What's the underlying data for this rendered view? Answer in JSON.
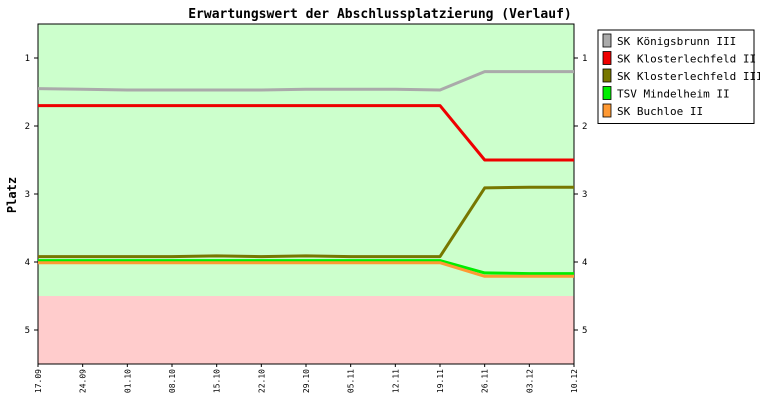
{
  "chart_data": {
    "type": "line",
    "title": "Erwartungswert der Abschlussplatzierung (Verlauf)",
    "ylabel": "Platz",
    "xlabel": "",
    "ylim": [
      0.5,
      5.5
    ],
    "y_reversed": true,
    "y_ticks": [
      "1",
      "2",
      "3",
      "4",
      "5"
    ],
    "categories": [
      "17.09",
      "24.09",
      "01.10",
      "08.10",
      "15.10",
      "22.10",
      "29.10",
      "05.11",
      "12.11",
      "19.11",
      "26.11",
      "03.12",
      "10.12"
    ],
    "zones": [
      {
        "from": 0.5,
        "to": 4.5,
        "color": "#ccffcc"
      },
      {
        "from": 4.5,
        "to": 5.5,
        "color": "#ffcccc"
      }
    ],
    "series": [
      {
        "name": "SK Königsbrunn III",
        "color": "#aaaaaa",
        "values": [
          1.45,
          1.46,
          1.47,
          1.47,
          1.47,
          1.47,
          1.46,
          1.46,
          1.46,
          1.47,
          1.2,
          1.2,
          1.2
        ]
      },
      {
        "name": "SK Klosterlechfeld II",
        "color": "#ee0000",
        "values": [
          1.7,
          1.7,
          1.7,
          1.7,
          1.7,
          1.7,
          1.7,
          1.7,
          1.7,
          1.7,
          2.5,
          2.5,
          2.5
        ]
      },
      {
        "name": "SK Klosterlechfeld III",
        "color": "#777700",
        "values": [
          3.92,
          3.92,
          3.92,
          3.92,
          3.91,
          3.92,
          3.91,
          3.92,
          3.92,
          3.92,
          2.91,
          2.9,
          2.9
        ]
      },
      {
        "name": "TSV Mindelheim II",
        "color": "#00ee00",
        "values": [
          3.98,
          3.98,
          3.98,
          3.98,
          3.98,
          3.98,
          3.98,
          3.98,
          3.98,
          3.98,
          4.16,
          4.17,
          4.17
        ]
      },
      {
        "name": "SK Buchloe II",
        "color": "#ff9933",
        "values": [
          4.01,
          4.01,
          4.01,
          4.01,
          4.01,
          4.01,
          4.01,
          4.01,
          4.01,
          4.01,
          4.21,
          4.21,
          4.21
        ]
      }
    ],
    "grid": false,
    "legend_position": "right"
  }
}
